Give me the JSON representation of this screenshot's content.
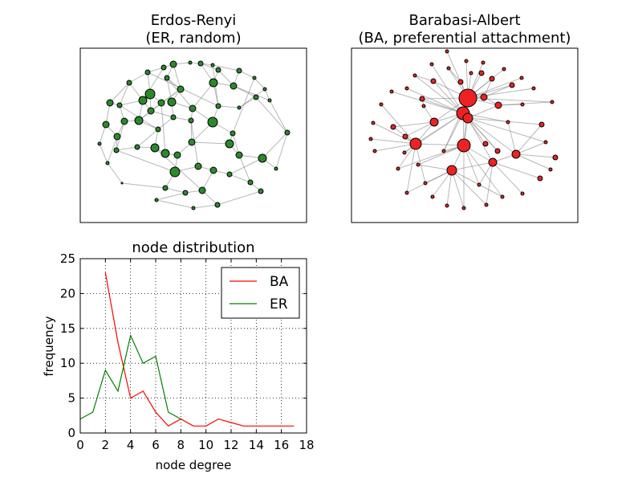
{
  "chart_data": [
    {
      "type": "network",
      "title": [
        "Erdos-Renyi",
        "(ER, random)"
      ],
      "node_color": "#2a8a2a"
    },
    {
      "type": "network",
      "title": [
        "Barabasi-Albert",
        "(BA, preferential attachment)"
      ],
      "node_color": "#ee2222"
    },
    {
      "type": "line",
      "title": "node distribution",
      "xlabel": "node degree",
      "ylabel": "frequency",
      "xlim": [
        0,
        18
      ],
      "ylim": [
        0,
        25
      ],
      "xticks": [
        "0",
        "2",
        "4",
        "6",
        "8",
        "10",
        "12",
        "14",
        "16",
        "18"
      ],
      "yticks": [
        "0",
        "5",
        "10",
        "15",
        "20",
        "25"
      ],
      "grid": true,
      "legend_position": "top-right",
      "series": [
        {
          "name": "BA",
          "color": "#ff0000",
          "x": [
            2,
            3,
            4,
            5,
            6,
            7,
            8,
            9,
            10,
            11,
            12,
            13,
            14,
            15,
            16,
            17
          ],
          "y": [
            23,
            13,
            5,
            6,
            3,
            1,
            2,
            1,
            1,
            2,
            1.5,
            1,
            1,
            1,
            1,
            1
          ]
        },
        {
          "name": "ER",
          "color": "#008000",
          "x": [
            0,
            1,
            2,
            3,
            4,
            5,
            6,
            7,
            8
          ],
          "y": [
            2,
            3,
            9,
            6,
            14,
            10,
            11,
            3,
            2
          ]
        }
      ]
    }
  ]
}
